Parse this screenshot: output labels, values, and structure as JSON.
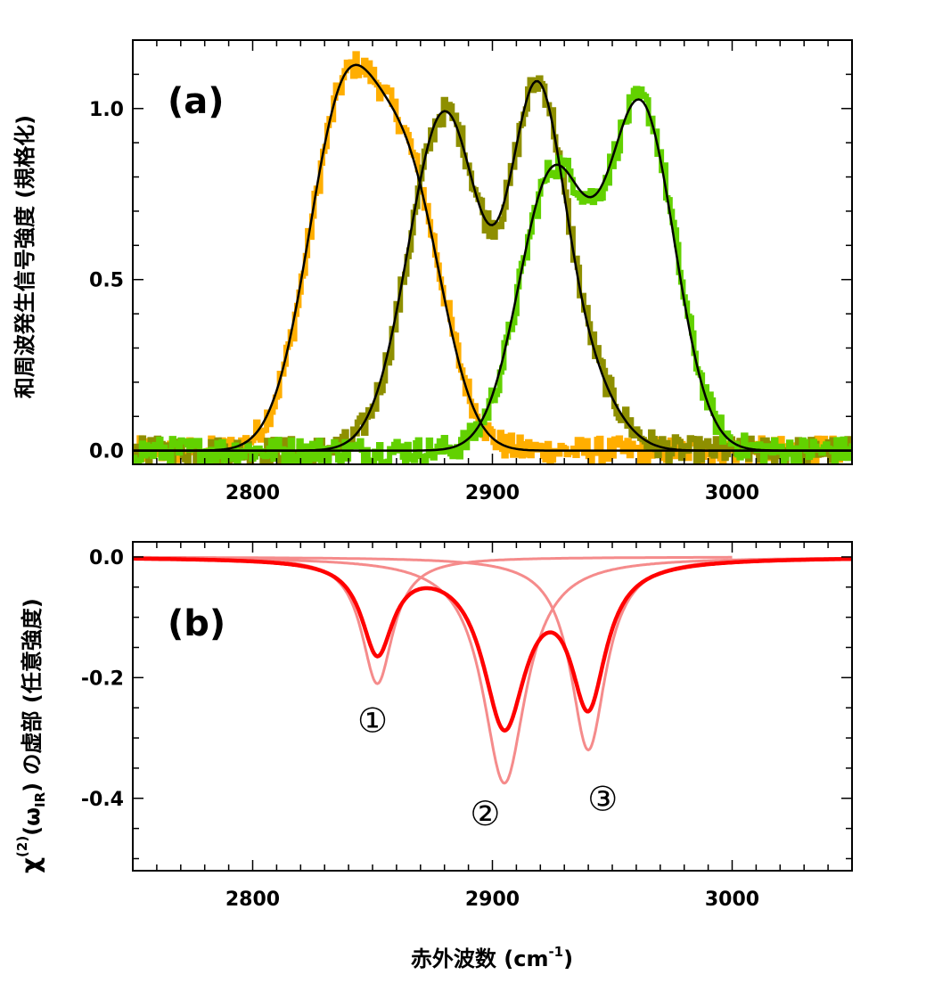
{
  "chart_data": [
    {
      "panel": "(a)",
      "type": "line",
      "xlabel": "",
      "ylabel": "和周波発生信号強度 (規格化)",
      "xlim": [
        2750,
        3050
      ],
      "ylim": [
        -0.04,
        1.2
      ],
      "xticks": [
        2800,
        2900,
        3000
      ],
      "xtick_labels": [
        "2800",
        "2900",
        "3000"
      ],
      "yticks": [
        0.0,
        0.5,
        1.0
      ],
      "ytick_labels": [
        "0.0",
        "0.5",
        "1.0"
      ],
      "grid": false,
      "legend": "none",
      "series": [
        {
          "kind": "measured",
          "color": "#FFAE00",
          "fit_peaks": [
            {
              "center": 2838,
              "height": 1.0,
              "width": 15
            },
            {
              "center": 2866,
              "height": 0.7,
              "width": 14
            }
          ]
        },
        {
          "kind": "measured",
          "color": "#8E8F00",
          "fit_peaks": [
            {
              "center": 2880,
              "height": 0.99,
              "width": 15
            },
            {
              "center": 2918,
              "height": 0.92,
              "width": 11
            },
            {
              "center": 2935,
              "height": 0.25,
              "width": 14
            }
          ]
        },
        {
          "kind": "measured",
          "color": "#62D100",
          "fit_peaks": [
            {
              "center": 2925,
              "height": 0.8,
              "width": 14
            },
            {
              "center": 2962,
              "height": 1.0,
              "width": 14
            }
          ]
        }
      ],
      "fit_color": "#000000"
    },
    {
      "panel": "(b)",
      "type": "line",
      "xlabel": "赤外波数 (cm-1)",
      "ylabel": "χ(2)(ωIR) の虚部 (任意強度)",
      "xlim": [
        2750,
        3050
      ],
      "ylim": [
        -0.52,
        0.025
      ],
      "xticks": [
        2800,
        2900,
        3000
      ],
      "xtick_labels": [
        "2800",
        "2900",
        "3000"
      ],
      "yticks": [
        0.0,
        -0.2,
        -0.4
      ],
      "ytick_labels": [
        "0.0",
        "-0.2",
        "-0.4"
      ],
      "grid": false,
      "legend": "none",
      "components": [
        {
          "center": 2852,
          "depth": 0.21,
          "gamma": 8
        },
        {
          "center": 2905,
          "depth": 0.375,
          "gamma": 11
        },
        {
          "center": 2940,
          "depth": 0.32,
          "gamma": 9
        }
      ],
      "total_color": "#FF0000",
      "component_color": "#F58B8B",
      "markers": [
        {
          "label": "①",
          "x": 2850,
          "y": -0.29
        },
        {
          "label": "②",
          "x": 2897,
          "y": -0.445
        },
        {
          "label": "③",
          "x": 2946,
          "y": -0.42
        }
      ]
    }
  ],
  "figure": {
    "panel_a_label": "(a)",
    "panel_b_label": "(b)",
    "ylabel_a": "和周波発生信号強度 (規格化)",
    "ylabel_b_main": "(ω",
    "ylabel_b_sub": "IR",
    "ylabel_b_rest": ") の虚部 (任意強度)",
    "ylabel_b_sup": "(2)",
    "ylabel_b_chi": "χ",
    "xlabel_main": "赤外波数 (cm",
    "xlabel_sup": "-1",
    "xlabel_end": ")"
  }
}
